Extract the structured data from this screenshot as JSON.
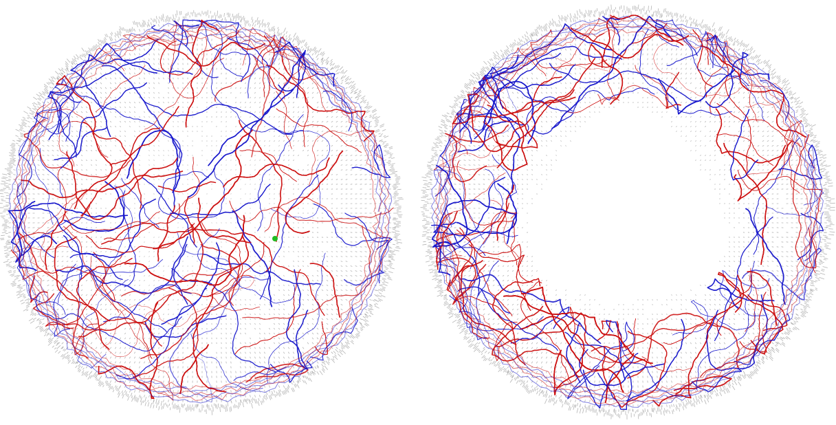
{
  "figure": {
    "panels": [
      {
        "id": "left",
        "view": "oblique",
        "center_region": "filled",
        "has_marker": true
      },
      {
        "id": "right",
        "view": "axial",
        "center_region": "empty",
        "has_marker": false
      }
    ],
    "colors": {
      "background": "#ffffff",
      "grid_points": "#9a9a9a",
      "vessels_red": "#cc1111",
      "vessels_blue": "#1a1acc",
      "marker": "#22bb22"
    }
  }
}
